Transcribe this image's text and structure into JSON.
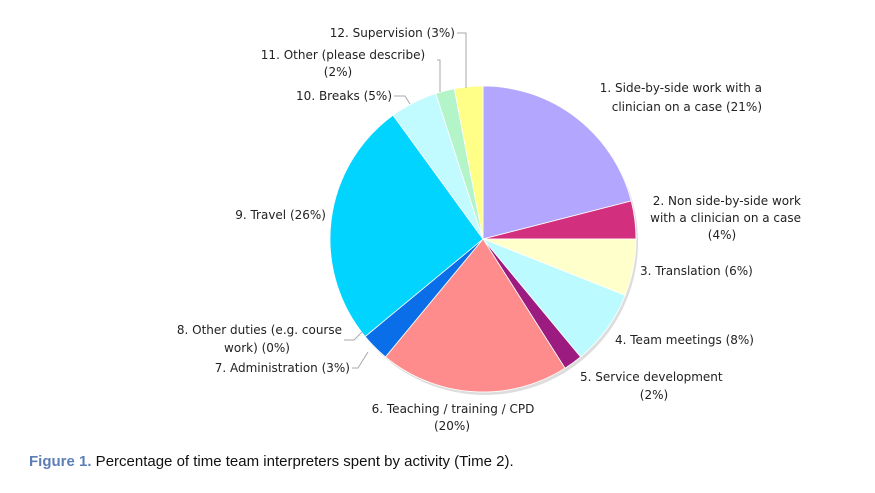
{
  "chart_data": {
    "type": "pie",
    "start": "12 o'clock",
    "direction": "clockwise",
    "slices": [
      {
        "label": [
          "1. Side-by-side work with a",
          "clinician on a case (21%)"
        ],
        "value": 21,
        "color": "#b3a6ff"
      },
      {
        "label": [
          "2. Non side-by-side work",
          "with a clinician on a case",
          "(4%)"
        ],
        "value": 4,
        "color": "#d2307f"
      },
      {
        "label": [
          "3. Translation (6%)"
        ],
        "value": 6,
        "color": "#ffffcc"
      },
      {
        "label": [
          "4. Team meetings (8%)"
        ],
        "value": 8,
        "color": "#bbfbff"
      },
      {
        "label": [
          "5. Service development",
          "(2%)"
        ],
        "value": 2,
        "color": "#9b1b80"
      },
      {
        "label": [
          "6. Teaching / training / CPD",
          "(20%)"
        ],
        "value": 20,
        "color": "#ff8c8c"
      },
      {
        "label": [
          "7. Administration (3%)"
        ],
        "value": 3,
        "color": "#0a6ee8"
      },
      {
        "label": [
          "8. Other duties (e.g. course",
          "work) (0%)"
        ],
        "value": 0,
        "color": "#7fd0ff"
      },
      {
        "label": [
          "9. Travel (26%)"
        ],
        "value": 26,
        "color": "#00d4ff"
      },
      {
        "label": [
          "10. Breaks (5%)"
        ],
        "value": 5,
        "color": "#c2fbff"
      },
      {
        "label": [
          "11. Other (please describe)",
          "(2%)"
        ],
        "value": 2,
        "color": "#b3f5c8"
      },
      {
        "label": [
          "12. Supervision (3%)"
        ],
        "value": 3,
        "color": "#ffff88"
      }
    ]
  },
  "caption": {
    "figure_label": "Figure 1.",
    "text": " Percentage of time team interpreters spent by activity (Time 2)."
  }
}
